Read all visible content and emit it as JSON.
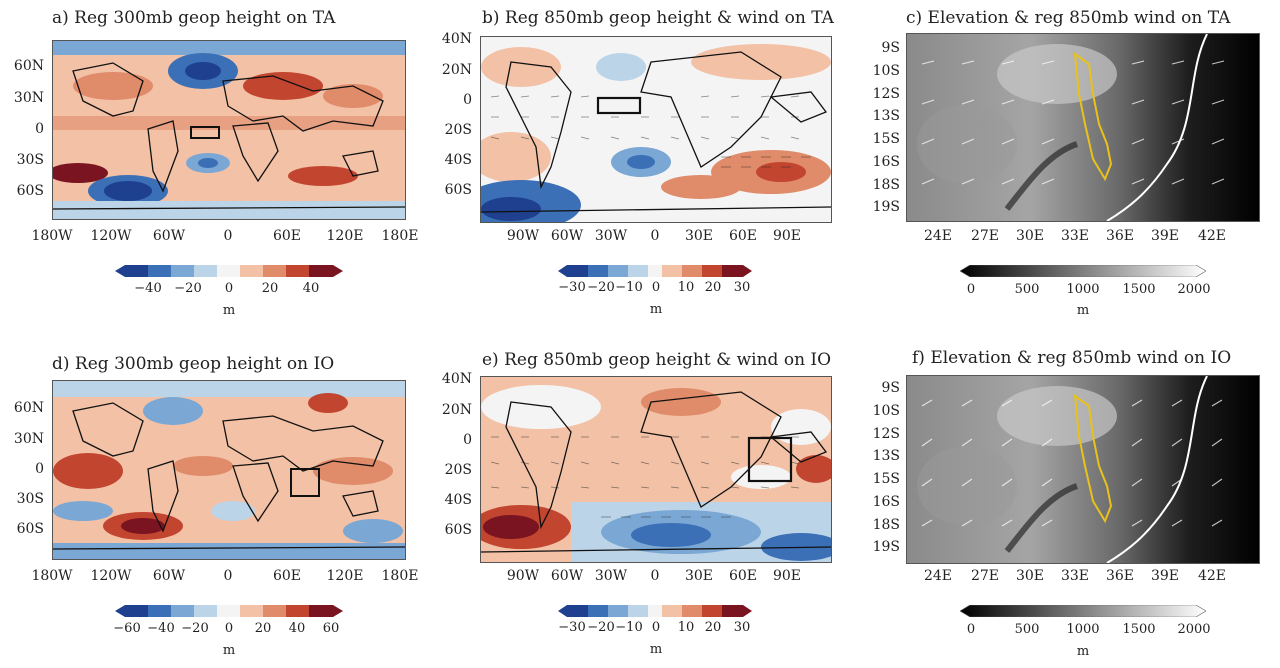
{
  "panels": {
    "a": {
      "title": "a) Reg 300mb geop height on TA",
      "ylabels": [
        "60N",
        "30N",
        "0",
        "30S",
        "60S"
      ],
      "xlabels": [
        "180W",
        "120W",
        "60W",
        "0",
        "60E",
        "120E",
        "180E"
      ],
      "colorbar": {
        "ticks": [
          "−40",
          "−20",
          "0",
          "20",
          "40"
        ],
        "unit": "m"
      }
    },
    "b": {
      "title": "b) Reg 850mb geop height & wind on TA",
      "ylabels": [
        "40N",
        "20N",
        "0",
        "20S",
        "40S",
        "60S"
      ],
      "xlabels": [
        "90W",
        "60W",
        "30W",
        "0",
        "30E",
        "60E",
        "90E"
      ],
      "colorbar": {
        "ticks": [
          "−30",
          "−20",
          "−10",
          "0",
          "10",
          "20",
          "30"
        ],
        "unit": "m"
      }
    },
    "c": {
      "title": "c) Elevation & reg 850mb wind on TA",
      "ylabels": [
        "9S",
        "10S",
        "12S",
        "13S",
        "15S",
        "16S",
        "18S",
        "19S"
      ],
      "xlabels": [
        "24E",
        "27E",
        "30E",
        "33E",
        "36E",
        "39E",
        "42E"
      ],
      "colorbar": {
        "ticks": [
          "0",
          "500",
          "1000",
          "1500",
          "2000"
        ],
        "unit": "m"
      }
    },
    "d": {
      "title": "d) Reg 300mb geop height on IO",
      "ylabels": [
        "60N",
        "30N",
        "0",
        "30S",
        "60S"
      ],
      "xlabels": [
        "180W",
        "120W",
        "60W",
        "0",
        "60E",
        "120E",
        "180E"
      ],
      "colorbar": {
        "ticks": [
          "−60",
          "−40",
          "−20",
          "0",
          "20",
          "40",
          "60"
        ],
        "unit": "m"
      }
    },
    "e": {
      "title": "e) Reg 850mb geop height & wind on IO",
      "ylabels": [
        "40N",
        "20N",
        "0",
        "20S",
        "40S",
        "60S"
      ],
      "xlabels": [
        "90W",
        "60W",
        "30W",
        "0",
        "30E",
        "60E",
        "90E"
      ],
      "colorbar": {
        "ticks": [
          "−30",
          "−20",
          "−10",
          "0",
          "10",
          "20",
          "30"
        ],
        "unit": "m"
      }
    },
    "f": {
      "title": "f) Elevation & reg 850mb wind on IO",
      "ylabels": [
        "9S",
        "10S",
        "12S",
        "13S",
        "15S",
        "16S",
        "18S",
        "19S"
      ],
      "xlabels": [
        "24E",
        "27E",
        "30E",
        "33E",
        "36E",
        "39E",
        "42E"
      ],
      "colorbar": {
        "ticks": [
          "0",
          "500",
          "1000",
          "1500",
          "2000"
        ],
        "unit": "m"
      }
    }
  },
  "colors": {
    "diverging": [
      "#1f3f8f",
      "#3b6fb6",
      "#7aa7d4",
      "#bcd4e8",
      "#f4f4f4",
      "#f2c1a6",
      "#e08b6a",
      "#c2452f",
      "#7a1420"
    ],
    "elevation": [
      "#000000",
      "#555555",
      "#999999",
      "#dddddd",
      "#ffffff"
    ],
    "outline": "#e8c21a"
  }
}
